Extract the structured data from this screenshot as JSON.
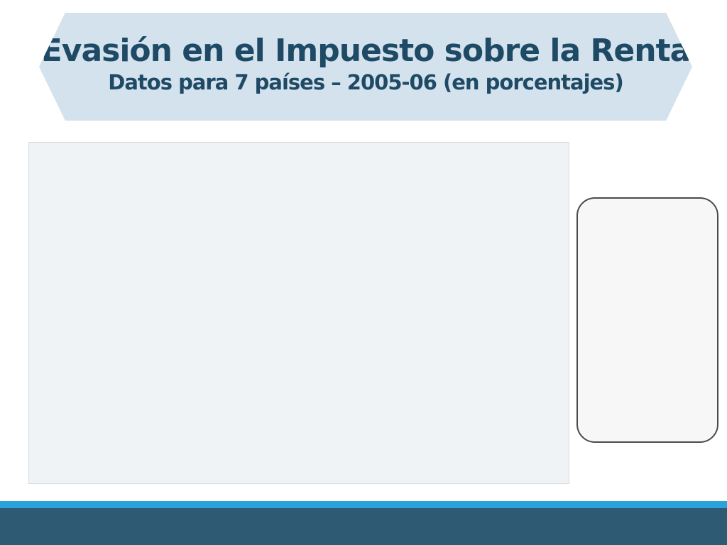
{
  "slide": {
    "title": "Evasión en el Impuesto sobre la Renta",
    "subtitle": "Datos para 7 países – 2005-06 (en porcentajes)"
  },
  "chart_data": {
    "type": "bar",
    "title": "",
    "series": []
  }
}
